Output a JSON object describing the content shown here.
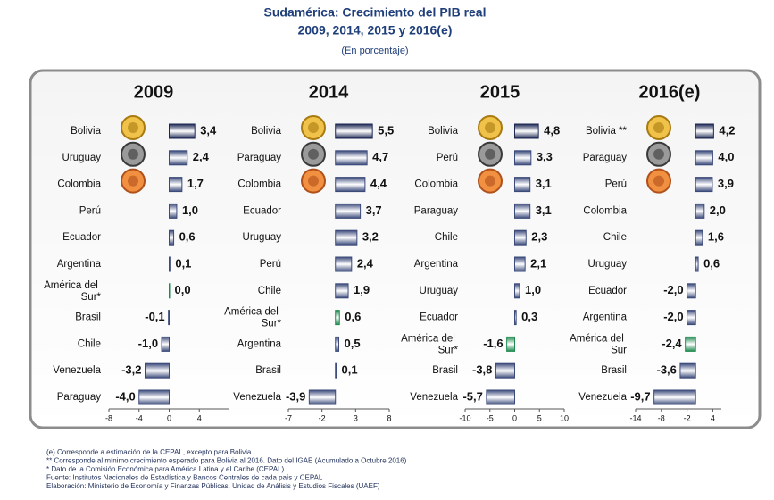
{
  "header": {
    "title": "Sudamérica: Crecimiento del PIB real",
    "title2": "2009, 2014, 2015 y 2016(e)",
    "subtitle": "(En porcentaje)"
  },
  "chart_data": [
    {
      "type": "bar",
      "orientation": "horizontal",
      "title": "2009",
      "categories": [
        "Bolivia",
        "Uruguay",
        "Colombia",
        "Perú",
        "Ecuador",
        "Argentina",
        "América del Sur*",
        "Brasil",
        "Chile",
        "Venezuela",
        "Paraguay"
      ],
      "values": [
        3.4,
        2.4,
        1.7,
        1.0,
        0.6,
        0.1,
        0.0,
        -0.1,
        -1.0,
        -3.2,
        -4.0
      ],
      "value_labels": [
        "3,4",
        "2,4",
        "1,7",
        "1,0",
        "0,6",
        "0,1",
        "0,0",
        "-0,1",
        "-1,0",
        "-3,2",
        "-4,0"
      ],
      "colors": [
        "#1c2753",
        "#3b4a7a",
        "#3b4a7a",
        "#3b4a7a",
        "#3b4a7a",
        "#3b4a7a",
        "#1f8a50",
        "#3b4a7a",
        "#3b4a7a",
        "#3b4a7a",
        "#3b4a7a"
      ],
      "xlim": [
        -8,
        8
      ],
      "xticks": [
        -8,
        -4,
        0,
        4
      ]
    },
    {
      "type": "bar",
      "orientation": "horizontal",
      "title": "2014",
      "categories": [
        "Bolivia",
        "Paraguay",
        "Colombia",
        "Ecuador",
        "Uruguay",
        "Perú",
        "Chile",
        "América del Sur*",
        "Argentina",
        "Brasil",
        "Venezuela"
      ],
      "values": [
        5.5,
        4.7,
        4.4,
        3.7,
        3.2,
        2.4,
        1.9,
        0.6,
        0.5,
        0.1,
        -3.9
      ],
      "value_labels": [
        "5,5",
        "4,7",
        "4,4",
        "3,7",
        "3,2",
        "2,4",
        "1,9",
        "0,6",
        "0,5",
        "0,1",
        "-3,9"
      ],
      "colors": [
        "#1c2753",
        "#3b4a7a",
        "#3b4a7a",
        "#3b4a7a",
        "#3b4a7a",
        "#3b4a7a",
        "#3b4a7a",
        "#1f8a50",
        "#3b4a7a",
        "#3b4a7a",
        "#3b4a7a"
      ],
      "xlim": [
        -7,
        8
      ],
      "xticks": [
        -7,
        -2,
        3,
        8
      ]
    },
    {
      "type": "bar",
      "orientation": "horizontal",
      "title": "2015",
      "categories": [
        "Bolivia",
        "Perú",
        "Colombia",
        "Paraguay",
        "Chile",
        "Argentina",
        "Uruguay",
        "Ecuador",
        "América del Sur*",
        "Brasil",
        "Venezuela"
      ],
      "values": [
        4.8,
        3.3,
        3.1,
        3.1,
        2.3,
        2.1,
        1.0,
        0.3,
        -1.6,
        -3.8,
        -5.7
      ],
      "value_labels": [
        "4,8",
        "3,3",
        "3,1",
        "3,1",
        "2,3",
        "2,1",
        "1,0",
        "0,3",
        "-1,6",
        "-3,8",
        "-5,7"
      ],
      "colors": [
        "#1c2753",
        "#3b4a7a",
        "#3b4a7a",
        "#3b4a7a",
        "#3b4a7a",
        "#3b4a7a",
        "#3b4a7a",
        "#3b4a7a",
        "#1f8a50",
        "#3b4a7a",
        "#3b4a7a"
      ],
      "xlim": [
        -10,
        10
      ],
      "xticks": [
        -10,
        -5,
        0,
        5,
        10
      ]
    },
    {
      "type": "bar",
      "orientation": "horizontal",
      "title": "2016(e)",
      "categories": [
        "Bolivia **",
        "Paraguay",
        "Perú",
        "Colombia",
        "Chile",
        "Uruguay",
        "Ecuador",
        "Argentina",
        "América del Sur",
        "Brasil",
        "Venezuela"
      ],
      "values": [
        4.2,
        4.0,
        3.9,
        2.0,
        1.6,
        0.6,
        -2.0,
        -2.0,
        -2.4,
        -3.6,
        -9.7
      ],
      "value_labels": [
        "4,2",
        "4,0",
        "3,9",
        "2,0",
        "1,6",
        "0,6",
        "-2,0",
        "-2,0",
        "-2,4",
        "-3,6",
        "-9,7"
      ],
      "colors": [
        "#1c2753",
        "#3b4a7a",
        "#3b4a7a",
        "#3b4a7a",
        "#3b4a7a",
        "#3b4a7a",
        "#3b4a7a",
        "#3b4a7a",
        "#1f8a50",
        "#3b4a7a",
        "#3b4a7a"
      ],
      "xlim": [
        -14,
        6
      ],
      "xticks": [
        -14,
        -8,
        -2,
        4
      ]
    }
  ],
  "footnotes": [
    "(e) Corresponde a estimación de la CEPAL, excepto para Bolivia.",
    "** Corresponde al mínimo crecimiento esperado para Bolivia al 2016. Dato del IGAE (Acumulado a Octubre 2016)",
    "* Dato de la Comisión Económica para América Latina y el Caribe (CEPAL)",
    "Fuente: Institutos Nacionales de Estadística y Bancos Centrales de cada país y CEPAL",
    "Elaboración: Ministerio de Economía y Finanzas Públicas, Unidad de Análisis y Estudios Fiscales (UAEF)"
  ]
}
